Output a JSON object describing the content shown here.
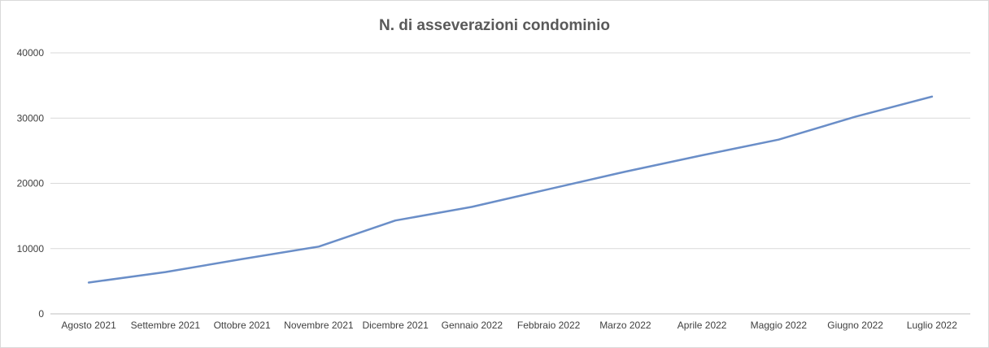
{
  "chart_data": {
    "type": "line",
    "title": "N. di asseverazioni condominio",
    "xlabel": "",
    "ylabel": "",
    "categories": [
      "Agosto 2021",
      "Settembre 2021",
      "Ottobre 2021",
      "Novembre 2021",
      "Dicembre 2021",
      "Gennaio 2022",
      "Febbraio 2022",
      "Marzo 2022",
      "Aprile 2022",
      "Maggio 2022",
      "Giugno 2022",
      "Luglio 2022"
    ],
    "series": [
      {
        "values": [
          4800,
          6400,
          8400,
          10300,
          14300,
          16400,
          19100,
          21800,
          24300,
          26700,
          30200,
          33300
        ],
        "color": "#6a8ec8"
      }
    ],
    "ylim": [
      0,
      40000
    ],
    "yticks": [
      "0",
      "10000",
      "20000",
      "30000",
      "40000"
    ],
    "grid": true,
    "legend": "none"
  }
}
